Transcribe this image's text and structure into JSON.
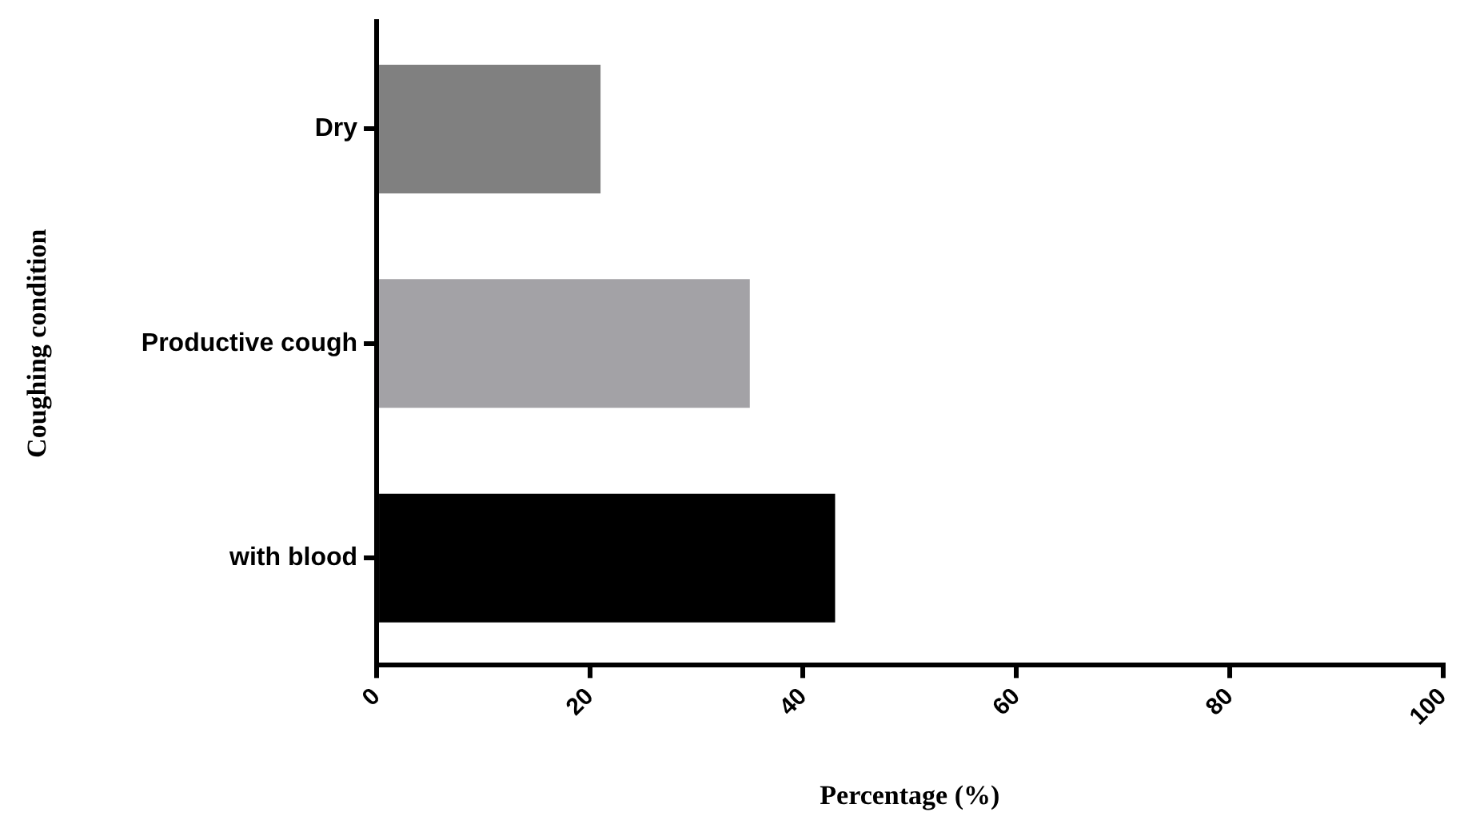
{
  "chart_data": {
    "type": "bar",
    "orientation": "horizontal",
    "xlabel": "Percentage (%)",
    "ylabel": "Coughing condition",
    "categories": [
      "Dry",
      "Productive cough",
      "with blood"
    ],
    "values": [
      21,
      35,
      43
    ],
    "colors": [
      "#808080",
      "#a3a2a6",
      "#000000"
    ],
    "xlim": [
      0,
      100
    ],
    "xticks": [
      0,
      20,
      40,
      60,
      80,
      100
    ],
    "grid": false,
    "legend": false
  }
}
